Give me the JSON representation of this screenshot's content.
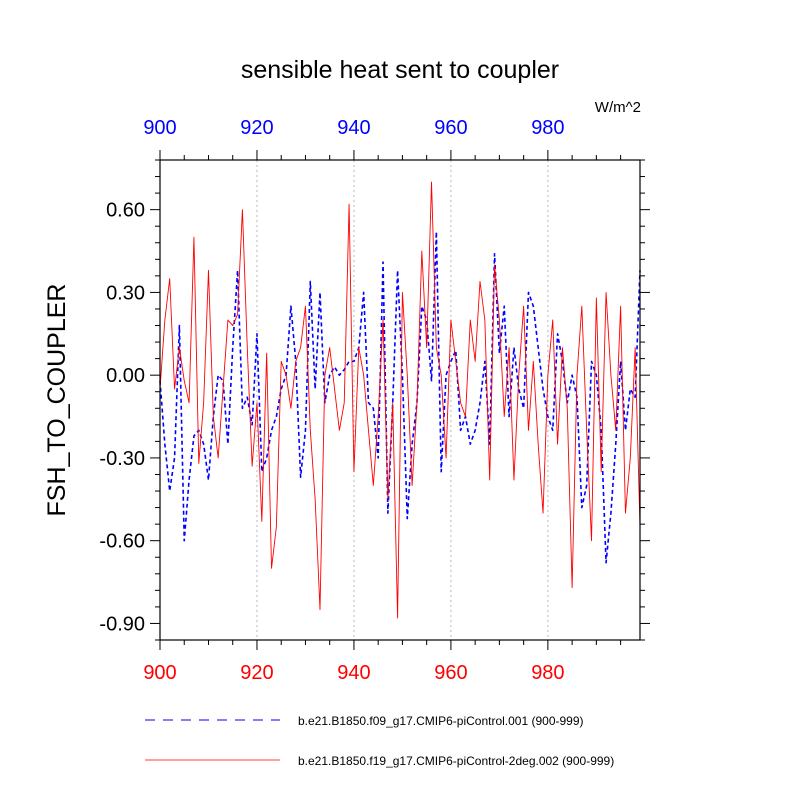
{
  "chart_data": {
    "type": "line",
    "title": "sensible heat sent to coupler",
    "units": "W/m^2",
    "ylabel": "FSH_TO_COUPLER",
    "xlabel": "",
    "xlim": [
      900,
      999
    ],
    "ylim": [
      -0.96,
      0.78
    ],
    "x_ticks": [
      900,
      920,
      940,
      960,
      980
    ],
    "x_tick_labels": [
      "900",
      "920",
      "940",
      "960",
      "980"
    ],
    "y_ticks": [
      0.6,
      0.3,
      0.0,
      -0.3,
      -0.6,
      -0.9
    ],
    "y_tick_labels": [
      "0.60",
      "0.30",
      "0.00",
      "-0.30",
      "-0.60",
      "-0.90"
    ],
    "grid": "vertical dotted at major x ticks",
    "legend_position": "bottom",
    "top_axis_color": "#0000ff",
    "bottom_axis_color": "#ff0000",
    "x_start": 900,
    "series": [
      {
        "name": "b.e21.B1850.f09_g17.CMIP6-piControl.001 (900-999)",
        "color": "#0000ff",
        "dash": "dashed",
        "values": [
          -0.02,
          -0.25,
          -0.42,
          -0.3,
          0.18,
          -0.6,
          -0.38,
          -0.22,
          -0.2,
          -0.25,
          -0.38,
          -0.15,
          0.0,
          -0.02,
          -0.25,
          0.1,
          0.38,
          -0.12,
          -0.08,
          -0.18,
          0.15,
          -0.35,
          -0.3,
          -0.2,
          -0.15,
          -0.05,
          0.0,
          0.25,
          0.05,
          -0.37,
          -0.2,
          0.34,
          -0.05,
          0.3,
          -0.1,
          0.0,
          0.03,
          0.0,
          0.02,
          0.05,
          0.05,
          0.1,
          0.3,
          -0.1,
          -0.12,
          -0.3,
          0.41,
          -0.5,
          -0.1,
          0.38,
          0.0,
          -0.52,
          -0.25,
          -0.1,
          0.25,
          0.2,
          -0.02,
          0.52,
          -0.35,
          0.0,
          0.05,
          0.09,
          -0.2,
          -0.15,
          -0.25,
          -0.2,
          -0.1,
          0.05,
          -0.25,
          0.44,
          0.08,
          0.25,
          -0.15,
          0.1,
          -0.05,
          -0.12,
          0.3,
          0.25,
          0.1,
          -0.05,
          -0.15,
          -0.2,
          0.15,
          0.05,
          -0.1,
          0.0,
          -0.08,
          -0.48,
          -0.4,
          0.05,
          0.0,
          -0.2,
          -0.68,
          -0.5,
          -0.25,
          0.05,
          -0.2,
          -0.05,
          -0.08,
          0.38
        ]
      },
      {
        "name": "b.e21.B1850.f19_g17.CMIP6-piControl-2deg.002 (900-999)",
        "color": "#ff0000",
        "dash": "solid",
        "values": [
          -0.05,
          0.2,
          0.35,
          -0.05,
          0.1,
          -0.02,
          -0.1,
          0.5,
          -0.32,
          -0.1,
          0.38,
          -0.15,
          -0.3,
          -0.05,
          0.2,
          0.18,
          0.22,
          0.6,
          0.1,
          -0.33,
          -0.1,
          -0.53,
          0.08,
          -0.7,
          -0.55,
          0.05,
          0.0,
          -0.12,
          0.05,
          0.1,
          0.25,
          -0.2,
          -0.45,
          -0.85,
          0.0,
          0.1,
          -0.05,
          -0.2,
          -0.1,
          0.62,
          -0.35,
          0.1,
          0.0,
          -0.2,
          -0.4,
          -0.15,
          0.2,
          -0.45,
          -0.1,
          -0.88,
          0.3,
          0.0,
          -0.4,
          -0.1,
          0.45,
          0.1,
          0.7,
          0.1,
          0.0,
          -0.3,
          0.2,
          0.05,
          -0.1,
          -0.15,
          0.2,
          0.05,
          0.34,
          0.2,
          -0.38,
          0.4,
          0.2,
          -0.15,
          0.1,
          -0.38,
          0.0,
          0.25,
          -0.2,
          0.05,
          -0.25,
          -0.5,
          0.0,
          0.2,
          -0.25,
          0.1,
          -0.12,
          -0.77,
          0.0,
          0.25,
          -0.2,
          -0.6,
          0.28,
          -0.35,
          0.3,
          0.0,
          -0.2,
          0.25,
          -0.5,
          -0.3,
          0.1,
          -0.55
        ]
      }
    ]
  }
}
